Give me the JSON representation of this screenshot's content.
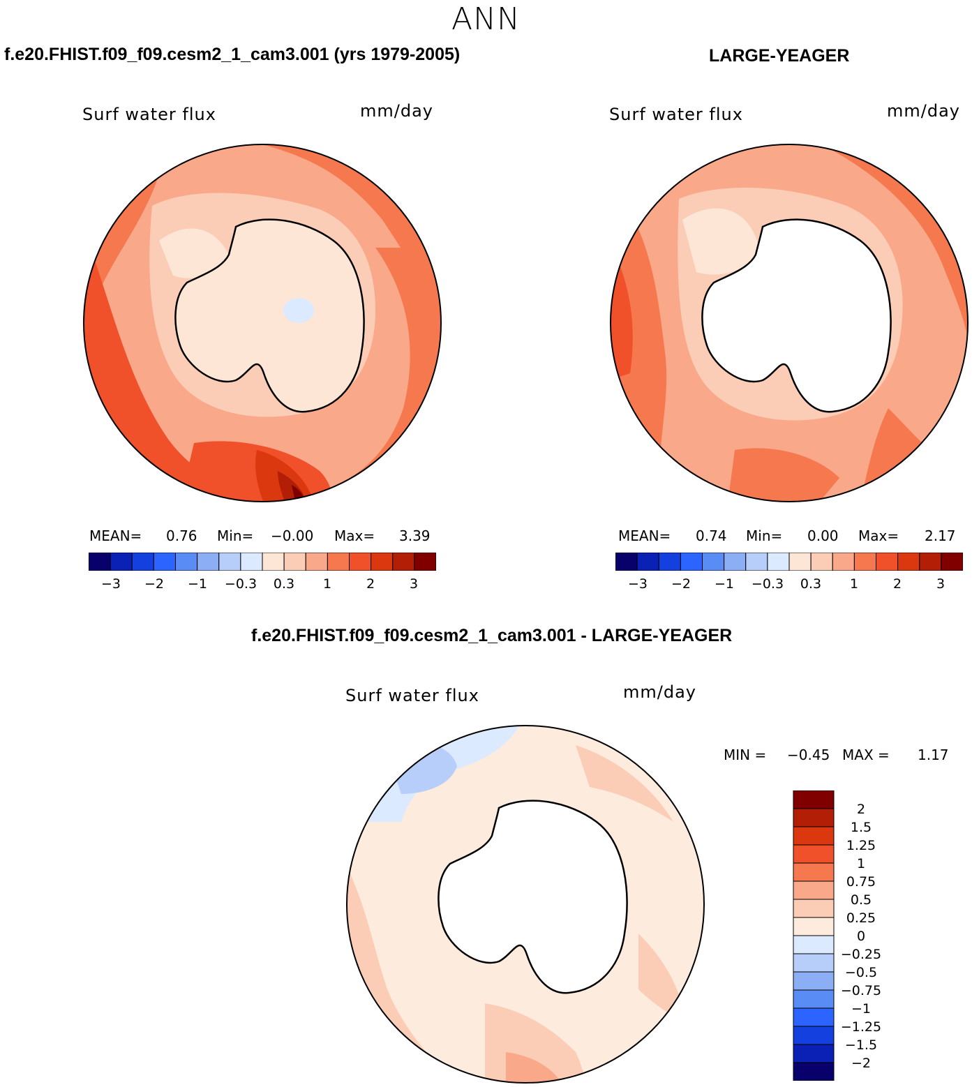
{
  "season": "ANN",
  "colors": {
    "model_obs_scale": [
      "#08006b",
      "#0b20b4",
      "#1540e0",
      "#2b64ff",
      "#5a8cf5",
      "#8caef5",
      "#b8cefa",
      "#dceaff",
      "#fde6d6",
      "#fccdb6",
      "#f9a98a",
      "#f5784f",
      "#f0502a",
      "#dc3810",
      "#b31e06",
      "#800000"
    ],
    "diff_scale": [
      "#08006b",
      "#0b20b4",
      "#1540e0",
      "#2b64ff",
      "#5a8cf5",
      "#8caef5",
      "#b8cefa",
      "#dceaff",
      "#fdebdd",
      "#fccdb6",
      "#f9a98a",
      "#f5784f",
      "#f0502a",
      "#dc3810",
      "#b31e06",
      "#800000"
    ],
    "land": "#ffffff",
    "coast": "#000000"
  },
  "panel_model": {
    "title": "f.e20.FHIST.f09_f09.cesm2_1_cam3.001 (yrs 1979-2005)",
    "variable": "Surf water flux",
    "units": "mm/day",
    "mean_label": "MEAN=",
    "mean_value": "0.76",
    "min_label": "Min=",
    "min_value": "−0.00",
    "max_label": "Max=",
    "max_value": "3.39",
    "colorbar_ticks": [
      "−3",
      "−2",
      "−1",
      "−0.3",
      "0.3",
      "1",
      "2",
      "3"
    ]
  },
  "panel_obs": {
    "title": "LARGE-YEAGER",
    "variable": "Surf water flux",
    "units": "mm/day",
    "mean_label": "MEAN=",
    "mean_value": "0.74",
    "min_label": "Min=",
    "min_value": "0.00",
    "max_label": "Max=",
    "max_value": "2.17",
    "colorbar_ticks": [
      "−3",
      "−2",
      "−1",
      "−0.3",
      "0.3",
      "1",
      "2",
      "3"
    ]
  },
  "panel_diff": {
    "title": "f.e20.FHIST.f09_f09.cesm2_1_cam3.001 - LARGE-YEAGER",
    "variable": "Surf water flux",
    "units": "mm/day",
    "min_label": "MIN =",
    "min_value": "−0.45",
    "max_label": "MAX =",
    "max_value": "1.17",
    "colorbar_ticks": [
      "2",
      "1.5",
      "1.25",
      "1",
      "0.75",
      "0.5",
      "0.25",
      "0",
      "−0.25",
      "−0.5",
      "−0.75",
      "−1",
      "−1.25",
      "−1.5",
      "−2"
    ]
  }
}
